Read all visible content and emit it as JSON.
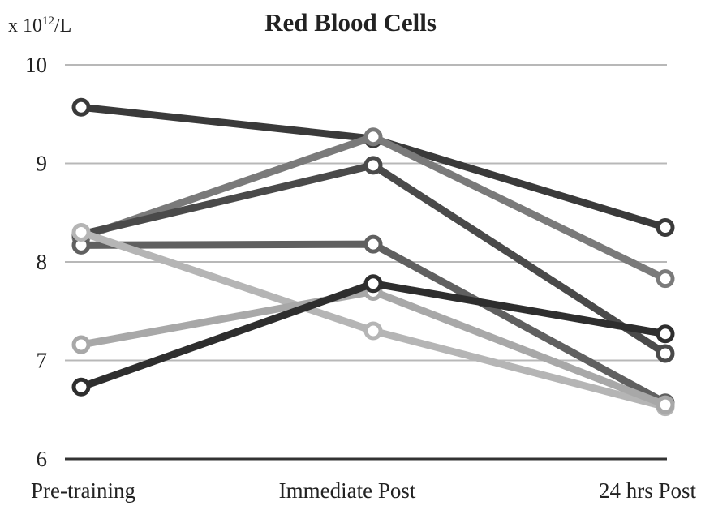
{
  "chart_data": {
    "type": "line",
    "title": "Red Blood Cells",
    "ylabel": {
      "prefix": "x 10",
      "exponent": "12",
      "suffix": "/L"
    },
    "xlabel": "",
    "categories": [
      "Pre-training",
      "Immediate Post",
      "24 hrs Post"
    ],
    "ylim": [
      6,
      10
    ],
    "yticks": [
      6,
      7,
      8,
      9,
      10
    ],
    "grid": true,
    "legend": "none",
    "series": [
      {
        "color": "#3a3a3a",
        "values": [
          9.57,
          9.25,
          8.35
        ]
      },
      {
        "color": "#7a7a7a",
        "values": [
          8.25,
          9.27,
          7.83
        ]
      },
      {
        "color": "#4a4a4a",
        "values": [
          8.28,
          8.98,
          7.07
        ]
      },
      {
        "color": "#606060",
        "values": [
          8.17,
          8.18,
          6.57
        ]
      },
      {
        "color": "#b5b5b5",
        "values": [
          8.3,
          7.3,
          6.53
        ]
      },
      {
        "color": "#a8a8a8",
        "values": [
          7.16,
          7.7,
          6.55
        ]
      },
      {
        "color": "#2e2e2e",
        "values": [
          6.73,
          7.78,
          7.27
        ]
      }
    ]
  }
}
